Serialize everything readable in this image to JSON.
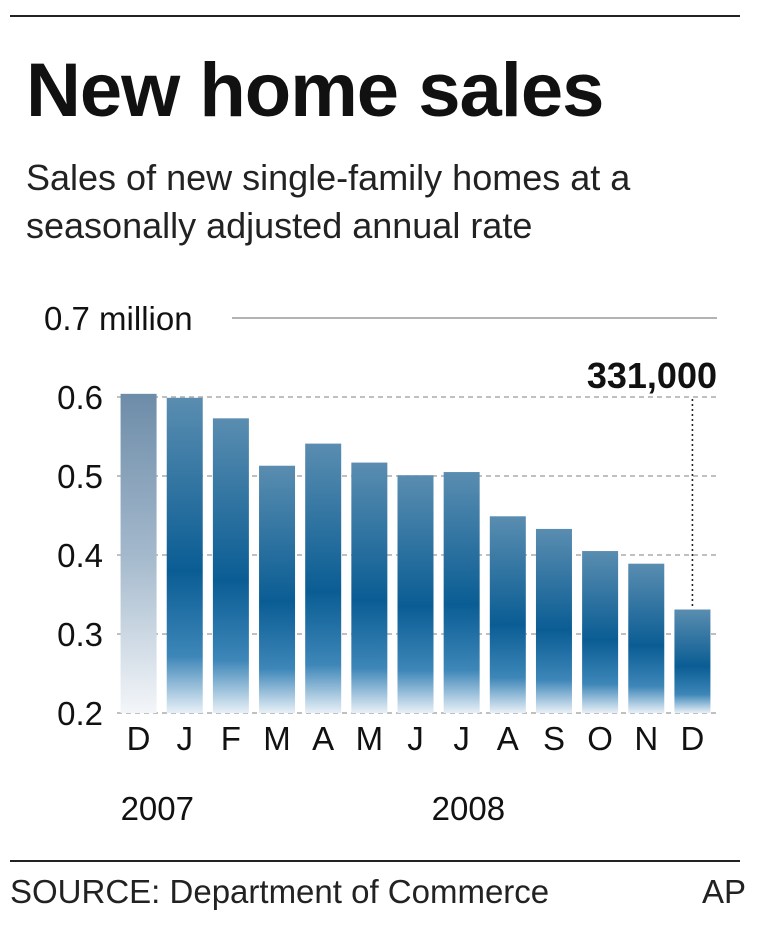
{
  "header": {
    "title": "New home sales",
    "subtitle": "Sales of new single-family homes at a seasonally adjusted annual rate"
  },
  "chart_data": {
    "type": "bar",
    "categories": [
      "D",
      "J",
      "F",
      "M",
      "A",
      "M",
      "J",
      "J",
      "A",
      "S",
      "O",
      "N",
      "D"
    ],
    "year_labels": [
      {
        "label": "2007",
        "category_index": 0
      },
      {
        "label": "2008",
        "category_index": 7
      }
    ],
    "values": [
      0.604,
      0.599,
      0.573,
      0.513,
      0.541,
      0.517,
      0.501,
      0.505,
      0.449,
      0.433,
      0.405,
      0.389,
      0.331
    ],
    "ylim": [
      0.2,
      0.7
    ],
    "yticks": [
      0.2,
      0.3,
      0.4,
      0.5,
      0.6,
      0.7
    ],
    "ytick_labels": [
      "0.2",
      "0.3",
      "0.4",
      "0.5",
      "0.6",
      "0.7 million"
    ],
    "grid": true,
    "annotation": {
      "text": "331,000",
      "category_index": 12
    },
    "bar_color": "#0a5d94"
  },
  "footer": {
    "source": "SOURCE: Department of Commerce",
    "credit": "AP"
  }
}
